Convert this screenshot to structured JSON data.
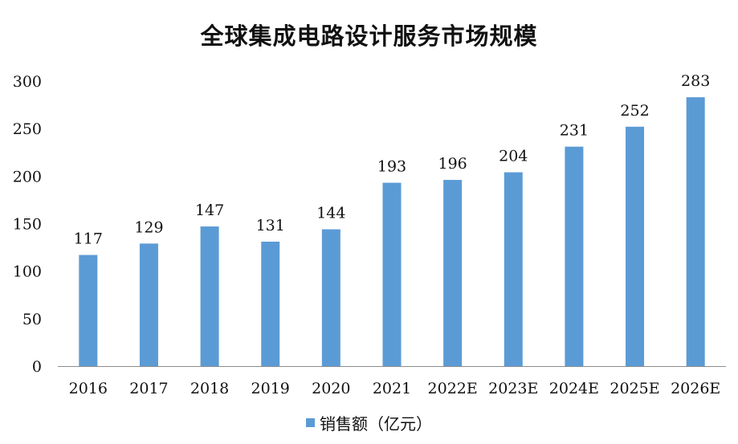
{
  "chart_data": {
    "type": "bar",
    "title": "全球集成电路设计服务市场规模",
    "categories": [
      "2016",
      "2017",
      "2018",
      "2019",
      "2020",
      "2021",
      "2022E",
      "2023E",
      "2024E",
      "2025E",
      "2026E"
    ],
    "series": [
      {
        "name": "销售额（亿元）",
        "values": [
          117,
          129,
          147,
          131,
          144,
          193,
          196,
          204,
          231,
          252,
          283
        ]
      }
    ],
    "ylim": [
      0,
      300
    ],
    "yticks": [
      0,
      50,
      100,
      150,
      200,
      250,
      300
    ],
    "grid": false,
    "legend": "bottom",
    "bar_color": "#5b9bd5"
  }
}
